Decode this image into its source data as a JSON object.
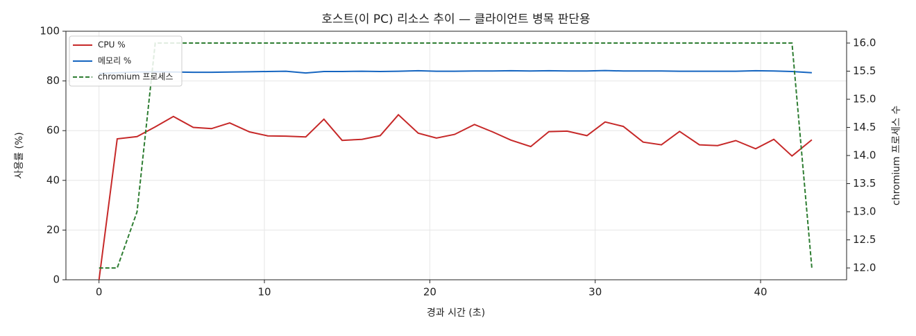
{
  "chart_data": {
    "type": "line",
    "title": "호스트(이 PC) 리소스 추이 — 클라이언트 병목 판단용",
    "xlabel": "경과 시간 (초)",
    "ylabel": "사용률 (%)",
    "y2label": "chromium 프로세스 수",
    "x": [
      0,
      1.1,
      2.3,
      3.4,
      4.5,
      5.7,
      6.8,
      7.9,
      9.1,
      10.2,
      11.3,
      12.5,
      13.6,
      14.7,
      15.9,
      17.0,
      18.1,
      19.3,
      20.4,
      21.5,
      22.7,
      23.8,
      24.9,
      26.1,
      27.2,
      28.3,
      29.5,
      30.6,
      31.7,
      32.9,
      34.0,
      35.1,
      36.3,
      37.4,
      38.5,
      39.7,
      40.8,
      41.9,
      43.1
    ],
    "series": [
      {
        "name": "CPU %",
        "color": "#c62828",
        "style": "solid",
        "values": [
          0,
          56.7,
          57.6,
          61.5,
          65.7,
          61.3,
          60.8,
          63.1,
          59.5,
          57.9,
          57.8,
          57.5,
          64.6,
          56.1,
          56.5,
          58.0,
          66.4,
          59.0,
          57.0,
          58.5,
          62.5,
          59.5,
          56.2,
          53.6,
          59.6,
          59.8,
          58.0,
          63.5,
          61.7,
          55.4,
          54.3,
          59.7,
          54.3,
          54.0,
          56.0,
          52.7,
          56.5,
          49.8,
          56.3
        ]
      },
      {
        "name": "메모리 %",
        "color": "#1565c0",
        "style": "solid",
        "values": [
          83.0,
          83.3,
          83.6,
          83.7,
          83.6,
          83.5,
          83.5,
          83.6,
          83.7,
          83.8,
          83.9,
          83.2,
          83.8,
          83.8,
          83.9,
          83.8,
          83.9,
          84.1,
          83.9,
          83.9,
          84.0,
          84.0,
          84.1,
          84.0,
          84.1,
          84.0,
          84.0,
          84.2,
          84.0,
          84.0,
          84.0,
          83.9,
          83.9,
          83.9,
          83.9,
          84.1,
          84.0,
          83.8,
          83.3
        ]
      },
      {
        "name": "chromium 프로세스",
        "color": "#2e7d32",
        "style": "dashed",
        "axis": "y2",
        "values": [
          12,
          12,
          13,
          16,
          16,
          16,
          16,
          16,
          16,
          16,
          16,
          16,
          16,
          16,
          16,
          16,
          16,
          16,
          16,
          16,
          16,
          16,
          16,
          16,
          16,
          16,
          16,
          16,
          16,
          16,
          16,
          16,
          16,
          16,
          16,
          16,
          16,
          16,
          12
        ]
      }
    ],
    "xlim": [
      -2.0,
      45.2
    ],
    "xticks": [
      0,
      10,
      20,
      30,
      40
    ],
    "ylim": [
      0,
      100
    ],
    "yticks": [
      0,
      20,
      40,
      60,
      80,
      100
    ],
    "y2lim": [
      11.79,
      16.21
    ],
    "y2ticks": [
      {
        "value": 12,
        "label": "12.0"
      },
      12.5,
      {
        "value": 13,
        "label": "13.0"
      },
      13.5,
      {
        "value": 14,
        "label": "14.0"
      },
      14.5,
      {
        "value": 15,
        "label": "15.0"
      },
      15.5,
      {
        "value": 16,
        "label": "16.0"
      }
    ],
    "grid": true,
    "legend": "upper left"
  }
}
